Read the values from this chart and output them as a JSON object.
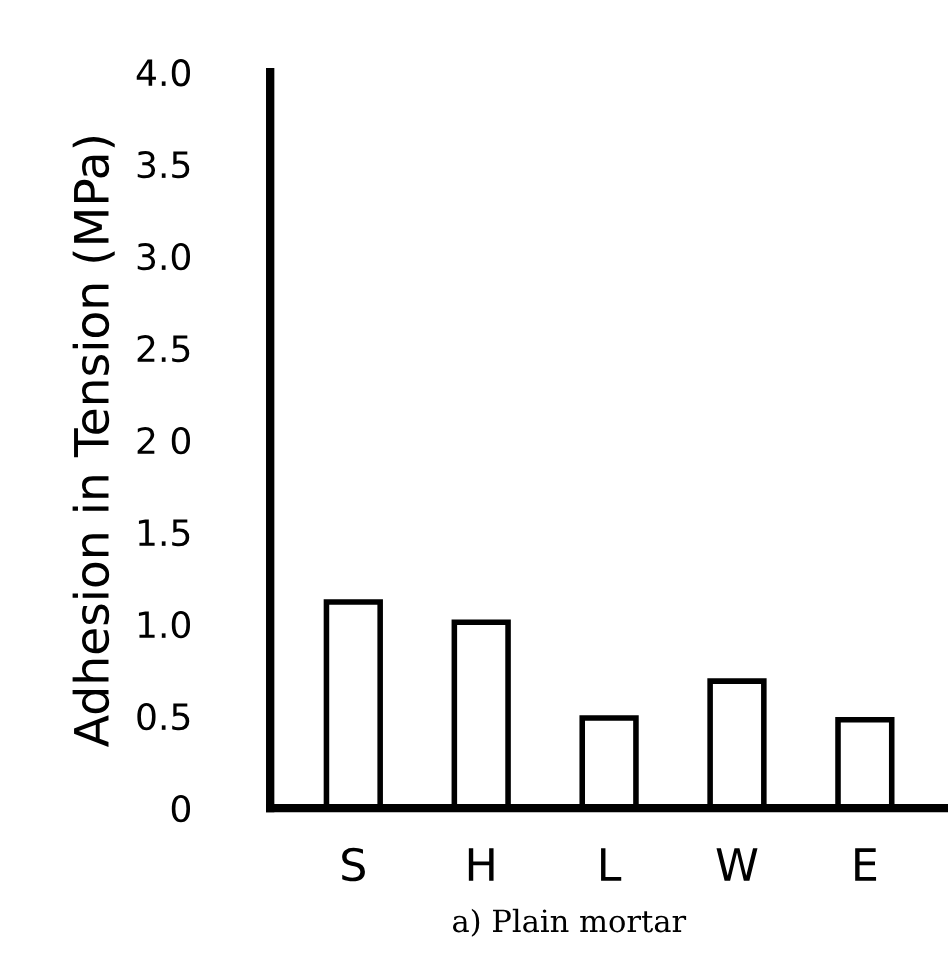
{
  "chart_data": {
    "type": "bar",
    "ylabel": "Adhesion in Tension (MPa)",
    "categories": [
      "S",
      "H",
      "L",
      "W",
      "E"
    ],
    "values": [
      1.12,
      1.01,
      0.49,
      0.69,
      0.48
    ],
    "color": "#ffffff",
    "ylim": [
      0,
      4.0
    ],
    "yticks": [
      {
        "value": 0,
        "label": "0"
      },
      {
        "value": 0.5,
        "label": "0.5"
      },
      {
        "value": 1.0,
        "label": "1.0"
      },
      {
        "value": 1.5,
        "label": "1.5"
      },
      {
        "value": 2.0,
        "label": "2 0"
      },
      {
        "value": 2.5,
        "label": "2.5"
      },
      {
        "value": 3.0,
        "label": "3.0"
      },
      {
        "value": 3.5,
        "label": "3.5"
      },
      {
        "value": 4.0,
        "label": "4.0"
      }
    ],
    "grid": false,
    "annotations": [
      "a) Plain mortar"
    ]
  }
}
